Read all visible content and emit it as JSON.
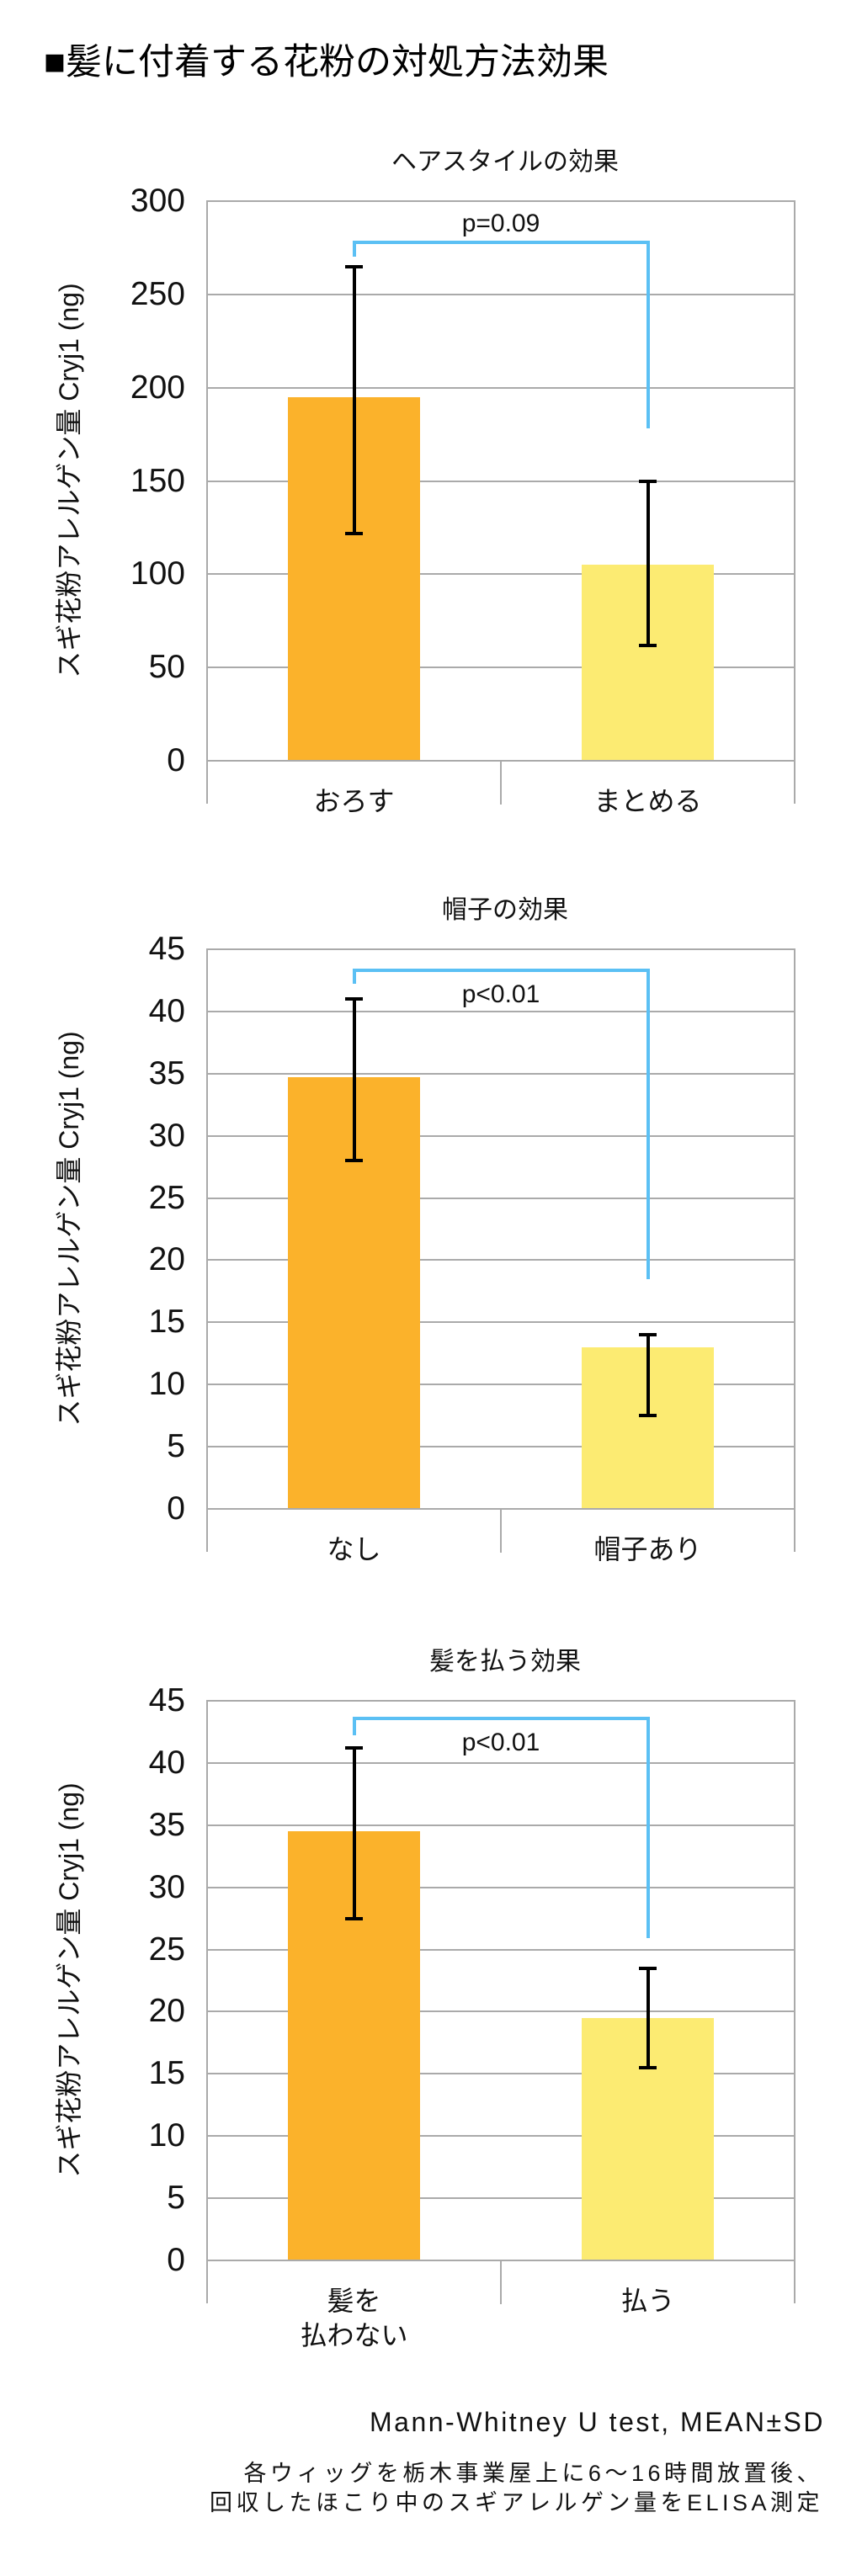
{
  "page": {
    "title": "■髪に付着する花粉の対処方法効果"
  },
  "theme": {
    "bar_primary": "#FBB22B",
    "bar_secondary": "#FCEB72",
    "bracket": "#5BC0F4",
    "grid": "#AAAAAA",
    "error_bar": "#000000"
  },
  "footer": {
    "stat_note": "Mann-Whitney U test, MEAN±SD",
    "method_line_1": "各ウィッグを栃木事業屋上に6〜16時間放置後、",
    "method_line_2": "回収したほこり中のスギアレルゲン量をELISA測定"
  },
  "chart_data": [
    {
      "type": "bar",
      "title": "ヘアスタイルの効果",
      "xlabel": "",
      "ylabel": "スギ花粉アレルゲン量 Cryj1 (ng)",
      "categories": [
        "おろす",
        "まとめる"
      ],
      "values": [
        195,
        105
      ],
      "error_low": [
        122,
        62
      ],
      "error_high": [
        265,
        150
      ],
      "ylim": [
        0,
        300
      ],
      "yticks": [
        0,
        50,
        100,
        150,
        200,
        250,
        300
      ],
      "grid": true,
      "bar_colors": [
        "#FBB22B",
        "#FCEB72"
      ],
      "significance": {
        "label": "p=0.09",
        "bracket_top": 278,
        "left_end": 270,
        "right_end": 178,
        "label_position": "above"
      }
    },
    {
      "type": "bar",
      "title": "帽子の効果",
      "xlabel": "",
      "ylabel": "スギ花粉アレルゲン量 Cryj1 (ng)",
      "categories": [
        "なし",
        "帽子あり"
      ],
      "values": [
        34.7,
        13.0
      ],
      "error_low": [
        28.0,
        7.5
      ],
      "error_high": [
        41.0,
        14.0
      ],
      "ylim": [
        0,
        45
      ],
      "yticks": [
        0,
        5,
        10,
        15,
        20,
        25,
        30,
        35,
        40,
        45
      ],
      "grid": true,
      "bar_colors": [
        "#FBB22B",
        "#FCEB72"
      ],
      "significance": {
        "label": "p<0.01",
        "bracket_top": 43.3,
        "left_end": 42.2,
        "right_end": 18.5,
        "label_position": "below"
      }
    },
    {
      "type": "bar",
      "title": "髪を払う効果",
      "xlabel": "",
      "ylabel": "スギ花粉アレルゲン量 Cryj1 (ng)",
      "categories": [
        "髪を\n払わない",
        "払う"
      ],
      "values": [
        34.5,
        19.5
      ],
      "error_low": [
        27.5,
        15.5
      ],
      "error_high": [
        41.2,
        23.5
      ],
      "ylim": [
        0,
        45
      ],
      "yticks": [
        0,
        5,
        10,
        15,
        20,
        25,
        30,
        35,
        40,
        45
      ],
      "grid": true,
      "bar_colors": [
        "#FBB22B",
        "#FCEB72"
      ],
      "significance": {
        "label": "p<0.01",
        "bracket_top": 43.6,
        "left_end": 42.2,
        "right_end": 25.9,
        "label_position": "below"
      }
    }
  ]
}
